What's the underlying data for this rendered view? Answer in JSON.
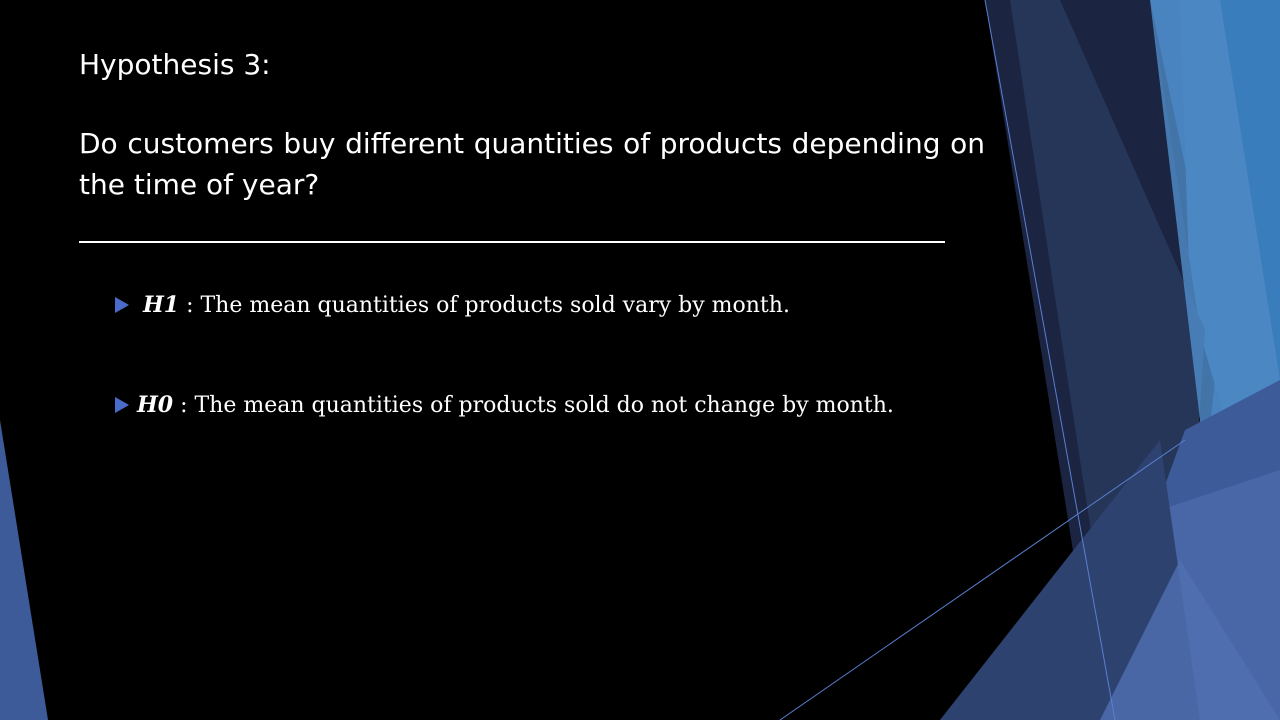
{
  "slide": {
    "title_line1": "Hypothesis 3:",
    "title_line2": "Do customers buy different quantities of products depending on the time of year?"
  },
  "bullets": [
    {
      "key": "H1",
      "text": " : The mean quantities of products sold vary by month."
    },
    {
      "key": "H0",
      "text": " : The mean quantities of products sold do not change by month."
    }
  ],
  "theme": {
    "background": "#000000",
    "text": "#ffffff",
    "accent": "#4a6bc9",
    "shape_dark_navy": "#1e2a45",
    "shape_navy": "#2e4270",
    "shape_mid_blue": "#3d5a99",
    "shape_light_blue": "#4d88c4",
    "shape_steel_blue": "#2f6fa8"
  },
  "icons": {
    "bullet": "triangle-right-icon"
  }
}
